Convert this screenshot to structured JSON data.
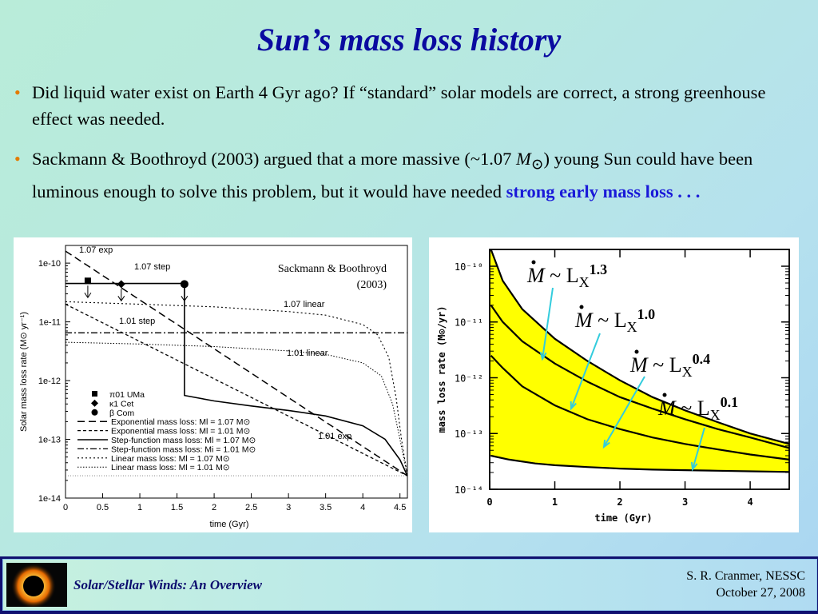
{
  "slide": {
    "title": "Sun’s mass loss history",
    "bullet1": "Did liquid water exist on Earth 4 Gyr ago?   If “standard” solar models are correct, a strong greenhouse effect was needed.",
    "bullet2_part1": "Sackmann & Boothroyd (2003) argued that a more massive (~1.07 ",
    "bullet2_mass": "M",
    "bullet2_sun": "⊙",
    "bullet2_part2": ") young Sun could have been luminous enough to solve this problem, but it would have needed ",
    "bullet2_highlight": "strong early mass loss . . .",
    "bullet_marker": "•"
  },
  "footer": {
    "left": "Solar/Stellar Winds: An Overview",
    "right_line1": "S. R. Cranmer, NESSC",
    "right_line2": "October 27, 2008"
  },
  "colors": {
    "title": "#0a0aa0",
    "highlight": "#1a1ad8",
    "bullet_marker": "#e37b00",
    "band_fill": "#ffff00",
    "arrow": "#33ccdd",
    "footer_bar": "#101070"
  },
  "chart_data": [
    {
      "type": "line",
      "yscale": "log",
      "xlabel": "time   (Gyr)",
      "ylabel": "Solar mass loss rate   (M⊙ yr⁻¹)",
      "xlim": [
        0,
        4.6
      ],
      "ylim": [
        1e-14,
        2e-10
      ],
      "xticks": [
        "0",
        "0.5",
        "1",
        "1.5",
        "2",
        "2.5",
        "3",
        "3.5",
        "4",
        "4.5"
      ],
      "yticks": [
        "1e-10",
        "1e-11",
        "1e-12",
        "1e-13",
        "1e-14"
      ],
      "annotation": "Sackmann & Boothroyd",
      "annotation_year": "(2003)",
      "curve_labels": [
        "1.07 exp",
        "1.07 step",
        "1.07 linear",
        "1.01 step",
        "1.01 linear",
        "1.01 exp"
      ],
      "series": [
        {
          "name": "Exponential mass loss: Mi = 1.07 M⊙",
          "style": "dashed-long",
          "x": [
            0,
            4.6
          ],
          "y": [
            1.6e-10,
            2.4e-14
          ]
        },
        {
          "name": "Exponential mass loss: Mi = 1.01 M⊙",
          "style": "dashed-short",
          "x": [
            0,
            4.6
          ],
          "y": [
            2e-11,
            2.4e-14
          ]
        },
        {
          "name": "Step-function mass loss: Mi = 1.07 M⊙",
          "style": "solid",
          "x": [
            0,
            1.6,
            1.6,
            2.0,
            2.5,
            3.0,
            3.5,
            4.0,
            4.3,
            4.5,
            4.6
          ],
          "y": [
            4.5e-11,
            4.5e-11,
            5.6e-13,
            4.5e-13,
            3.7e-13,
            3.1e-13,
            2.5e-13,
            1.7e-13,
            1e-13,
            4.5e-14,
            2.4e-14
          ]
        },
        {
          "name": "Step-function mass loss: Mi = 1.01 M⊙",
          "style": "dash-dot",
          "x": [
            0,
            4.6
          ],
          "y": [
            6.5e-12,
            6.5e-12
          ]
        },
        {
          "name": "Linear mass loss: Mi = 1.07 M⊙",
          "style": "dotted",
          "x": [
            0,
            1.0,
            2.0,
            3.0,
            3.5,
            4.0,
            4.2,
            4.35,
            4.45,
            4.52,
            4.6
          ],
          "y": [
            2.2e-11,
            2e-11,
            1.8e-11,
            1.5e-11,
            1.3e-11,
            9e-12,
            6e-12,
            2.5e-12,
            5e-13,
            1e-13,
            2.4e-14
          ]
        },
        {
          "name": "Linear mass loss: Mi = 1.01 M⊙",
          "style": "dotted-fine",
          "x": [
            0,
            1.0,
            2.0,
            3.0,
            3.5,
            4.0,
            4.25,
            4.4,
            4.5,
            4.6
          ],
          "y": [
            4.5e-12,
            4.2e-12,
            3.8e-12,
            3.2e-12,
            2.8e-12,
            2e-12,
            1.2e-12,
            4e-13,
            1e-13,
            2.4e-14
          ]
        }
      ],
      "points": [
        {
          "name": "π01 UMa",
          "marker": "square",
          "x": 0.3,
          "y": 5e-11
        },
        {
          "name": "κ1 Cet",
          "marker": "diamond",
          "x": 0.75,
          "y": 4.4e-11
        },
        {
          "name": "β Com",
          "marker": "circle",
          "x": 1.6,
          "y": 4.4e-11
        }
      ],
      "reference_line": {
        "y": 2.4e-14
      },
      "legend": [
        {
          "label": "π01 UMa"
        },
        {
          "label": "κ1 Cet"
        },
        {
          "label": "β Com"
        },
        {
          "label": "Exponential mass loss: Ml = 1.07 M⊙"
        },
        {
          "label": "Exponential mass loss: Ml = 1.01 M⊙"
        },
        {
          "label": "Step-function mass loss: Ml = 1.07 M⊙"
        },
        {
          "label": "Step-function mass loss: Mi = 1.01 M⊙"
        },
        {
          "label": "Linear mass loss: Ml = 1.07 M⊙"
        },
        {
          "label": "Linear mass loss: Ml = 1.01 M⊙"
        }
      ],
      "legend_position": "bottom-left"
    },
    {
      "type": "line",
      "yscale": "log",
      "xlabel": "time (Gyr)",
      "ylabel": "mass loss rate (M⊙/yr)",
      "xlim": [
        0,
        4.6
      ],
      "ylim": [
        1e-14,
        2e-10
      ],
      "xticks": [
        "0",
        "1",
        "2",
        "3",
        "4"
      ],
      "yticks": [
        "10⁻¹⁰",
        "10⁻¹¹",
        "10⁻¹²",
        "10⁻¹³",
        "10⁻¹⁴"
      ],
      "band": {
        "fill": "#ffff00",
        "upper": "Ṁ ~ LX^1.3",
        "lower": "Ṁ ~ LX^0.1"
      },
      "series": [
        {
          "name": "Ṁ ~ LX^1.3",
          "x": [
            0.02,
            0.2,
            0.5,
            1.0,
            1.5,
            2.0,
            2.5,
            3.0,
            3.5,
            4.0,
            4.6
          ],
          "y": [
            2e-10,
            5.5e-11,
            1.7e-11,
            5e-12,
            2e-12,
            9e-13,
            4.5e-13,
            2.6e-13,
            1.6e-13,
            1e-13,
            6.5e-14
          ]
        },
        {
          "name": "Ṁ ~ LX^1.0",
          "x": [
            0.02,
            0.2,
            0.5,
            1.0,
            1.5,
            2.0,
            2.5,
            3.0,
            3.5,
            4.0,
            4.6
          ],
          "y": [
            2e-11,
            1e-11,
            4.5e-12,
            1.8e-12,
            8.5e-13,
            4.5e-13,
            2.8e-13,
            1.8e-13,
            1.2e-13,
            8.5e-14,
            5.5e-14
          ]
        },
        {
          "name": "Ṁ ~ LX^0.4",
          "x": [
            0.02,
            0.2,
            0.5,
            1.0,
            1.5,
            2.0,
            2.5,
            3.0,
            3.5,
            4.0,
            4.6
          ],
          "y": [
            2.5e-12,
            1.5e-12,
            7e-13,
            3.2e-13,
            1.8e-13,
            1.2e-13,
            8.5e-14,
            6.5e-14,
            5.2e-14,
            4.2e-14,
            3.4e-14
          ]
        },
        {
          "name": "Ṁ ~ LX^0.1",
          "x": [
            0.02,
            0.3,
            0.7,
            1.0,
            1.5,
            2.0,
            2.5,
            3.0,
            3.5,
            4.0,
            4.6
          ],
          "y": [
            4e-14,
            3.4e-14,
            2.9e-14,
            2.7e-14,
            2.5e-14,
            2.35e-14,
            2.25e-14,
            2.2e-14,
            2.15e-14,
            2.1e-14,
            2.05e-14
          ]
        }
      ],
      "labels": [
        {
          "mdot": "M",
          "base": " ~ L",
          "sub": "X",
          "exp": "1.3"
        },
        {
          "mdot": "M",
          "base": " ~ L",
          "sub": "X",
          "exp": "1.0"
        },
        {
          "mdot": "M",
          "base": " ~ L",
          "sub": "X",
          "exp": "0.4"
        },
        {
          "mdot": "M",
          "base": " ~ L",
          "sub": "X",
          "exp": "0.1"
        }
      ]
    }
  ]
}
